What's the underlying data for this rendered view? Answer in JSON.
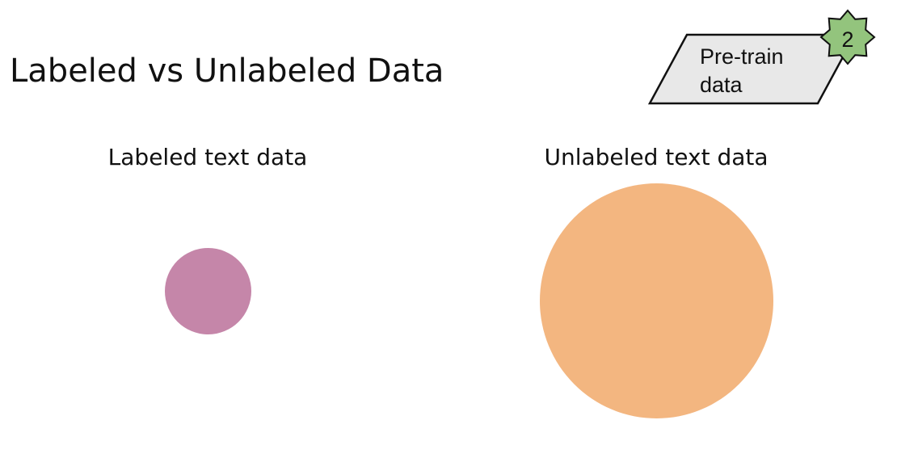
{
  "slide": {
    "title": "Labeled vs Unlabeled Data"
  },
  "badge": {
    "label_line1": "Pre-train",
    "label_line2": "data",
    "step_number": "2",
    "shape_fill": "#e8e8e8",
    "star_fill": "#93c47d"
  },
  "labeled": {
    "label": "Labeled text data",
    "circle_color": "#c586a9"
  },
  "unlabeled": {
    "label": "Unlabeled text data",
    "circle_color": "#f3b680"
  }
}
